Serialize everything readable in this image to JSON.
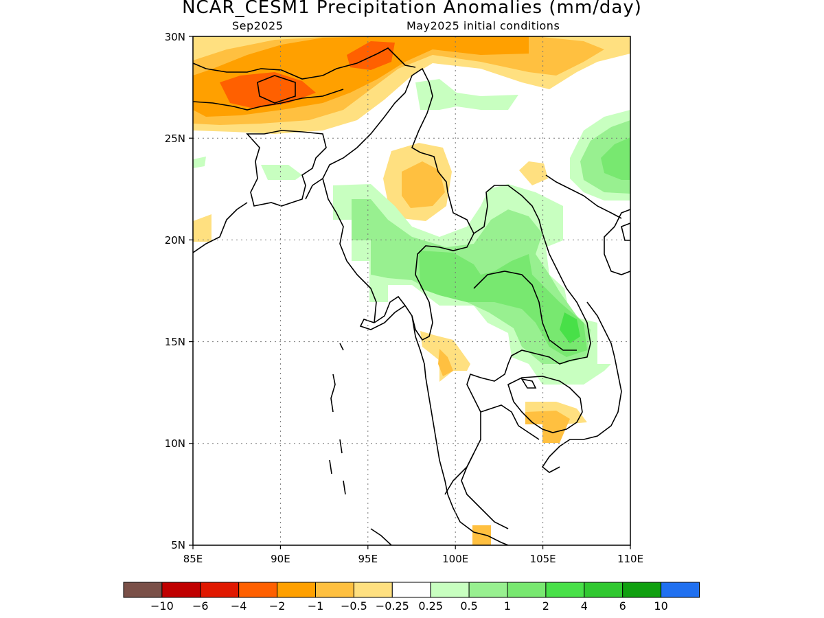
{
  "title": "NCAR_CESM1 Precipitation Anomalies (mm/day)",
  "subtitle_left": "Sep2025",
  "subtitle_right": "May2025 initial conditions",
  "lon_ticks": [
    "85E",
    "90E",
    "95E",
    "100E",
    "105E",
    "110E"
  ],
  "lat_ticks": [
    "5N",
    "10N",
    "15N",
    "20N",
    "25N",
    "30N"
  ],
  "colorbar": {
    "colors": [
      "#7a5048",
      "#c00000",
      "#e01800",
      "#ff6000",
      "#ffa000",
      "#ffc040",
      "#ffe080",
      "#ffffff",
      "#c8ffc0",
      "#98f090",
      "#78e870",
      "#48e048",
      "#30c830",
      "#10a010",
      "#2070f0"
    ],
    "labels": [
      "−10",
      "−6",
      "−4",
      "−2",
      "−1",
      "−0.5",
      "−0.25",
      "0.25",
      "0.5",
      "1",
      "2",
      "4",
      "6",
      "10"
    ]
  }
}
